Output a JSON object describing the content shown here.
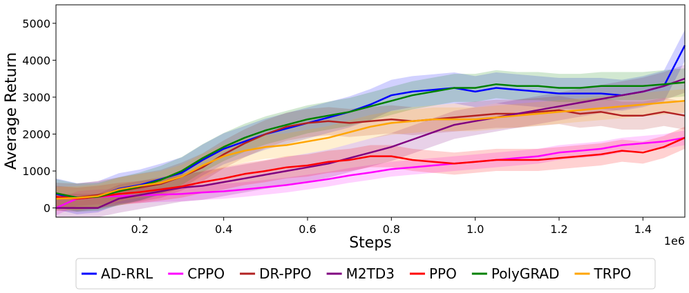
{
  "chart_data": {
    "type": "line",
    "xlabel": "Steps",
    "ylabel": "Average Return",
    "x_offset_label": "1e6",
    "xlim": [
      0.0,
      1.5
    ],
    "ylim": [
      -250,
      5500
    ],
    "xticks": [
      0.2,
      0.4,
      0.6,
      0.8,
      1.0,
      1.2,
      1.4
    ],
    "yticks": [
      0,
      1000,
      2000,
      3000,
      4000,
      5000
    ],
    "grid": false,
    "legend_position": "bottom-center",
    "x": [
      0.0,
      0.05,
      0.1,
      0.15,
      0.2,
      0.25,
      0.3,
      0.35,
      0.4,
      0.45,
      0.5,
      0.55,
      0.6,
      0.65,
      0.7,
      0.75,
      0.8,
      0.85,
      0.9,
      0.95,
      1.0,
      1.05,
      1.1,
      1.15,
      1.2,
      1.25,
      1.3,
      1.35,
      1.4,
      1.45,
      1.5
    ],
    "series": [
      {
        "name": "AD-RRL",
        "color": "#0000ff",
        "values": [
          380,
          250,
          300,
          520,
          620,
          780,
          950,
          1300,
          1600,
          1800,
          2000,
          2150,
          2300,
          2450,
          2600,
          2800,
          3050,
          3150,
          3200,
          3250,
          3150,
          3250,
          3200,
          3150,
          3100,
          3100,
          3100,
          3050,
          3150,
          3300,
          4400
        ],
        "band": 420
      },
      {
        "name": "CPPO",
        "color": "#ff00ff",
        "values": [
          0,
          250,
          300,
          320,
          340,
          360,
          380,
          420,
          450,
          500,
          560,
          620,
          700,
          780,
          880,
          960,
          1050,
          1100,
          1150,
          1200,
          1250,
          1300,
          1350,
          1400,
          1500,
          1550,
          1600,
          1700,
          1750,
          1800,
          1900
        ],
        "band": 200
      },
      {
        "name": "DR-PPO",
        "color": "#b22222",
        "values": [
          300,
          280,
          350,
          450,
          550,
          650,
          850,
          1100,
          1450,
          1750,
          2000,
          2200,
          2300,
          2350,
          2300,
          2350,
          2400,
          2350,
          2400,
          2450,
          2500,
          2550,
          2550,
          2600,
          2650,
          2550,
          2600,
          2500,
          2500,
          2600,
          2500
        ],
        "band": 380
      },
      {
        "name": "M2TD3",
        "color": "#800080",
        "values": [
          0,
          0,
          0,
          250,
          350,
          450,
          550,
          600,
          700,
          800,
          900,
          1000,
          1100,
          1200,
          1350,
          1500,
          1650,
          1850,
          2050,
          2250,
          2350,
          2450,
          2550,
          2650,
          2750,
          2850,
          2950,
          3050,
          3150,
          3300,
          3500
        ],
        "band": 380
      },
      {
        "name": "PPO",
        "color": "#ff0000",
        "values": [
          300,
          250,
          300,
          380,
          430,
          500,
          580,
          700,
          800,
          920,
          1000,
          1100,
          1150,
          1250,
          1300,
          1400,
          1400,
          1300,
          1250,
          1200,
          1250,
          1300,
          1300,
          1300,
          1350,
          1400,
          1450,
          1550,
          1500,
          1650,
          1900
        ],
        "band": 300
      },
      {
        "name": "PolyGRAD",
        "color": "#008000",
        "values": [
          400,
          280,
          300,
          450,
          580,
          760,
          1000,
          1350,
          1650,
          1900,
          2100,
          2250,
          2400,
          2500,
          2600,
          2750,
          2900,
          3050,
          3150,
          3250,
          3250,
          3350,
          3300,
          3300,
          3250,
          3250,
          3300,
          3300,
          3300,
          3350,
          3400
        ],
        "band": 380
      },
      {
        "name": "TRPO",
        "color": "#ffa500",
        "values": [
          250,
          270,
          320,
          500,
          600,
          680,
          850,
          1150,
          1400,
          1550,
          1650,
          1700,
          1800,
          1900,
          2050,
          2200,
          2300,
          2350,
          2400,
          2400,
          2400,
          2450,
          2500,
          2550,
          2600,
          2650,
          2700,
          2750,
          2800,
          2850,
          2900
        ],
        "band": 320
      }
    ]
  }
}
